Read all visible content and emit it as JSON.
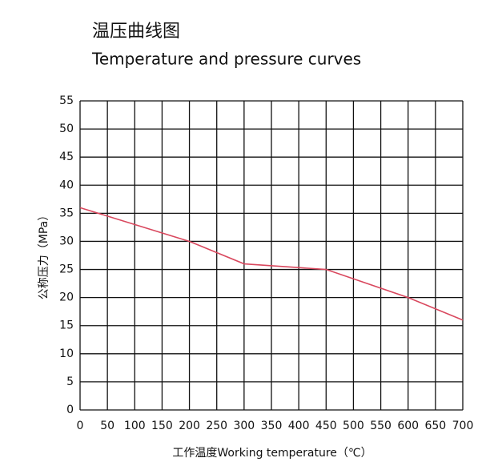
{
  "chart_data": {
    "type": "line",
    "title": "温压曲线图",
    "subtitle": "Temperature and pressure curves",
    "x_label": "工作温度Working temperature（℃）",
    "y_label": "公称压力（MPa）",
    "x": [
      0,
      200,
      300,
      450,
      600,
      700
    ],
    "series": [
      {
        "color": "#d9485e",
        "values": [
          36,
          30,
          26,
          25,
          20,
          16
        ]
      }
    ],
    "xlim": [
      0,
      700
    ],
    "xticks": [
      0,
      50,
      100,
      150,
      200,
      250,
      300,
      350,
      400,
      450,
      500,
      550,
      600,
      650,
      700
    ],
    "ylim": [
      0,
      55
    ],
    "yticks": [
      0,
      5,
      10,
      15,
      20,
      25,
      30,
      35,
      40,
      45,
      50,
      55
    ],
    "grid": true
  }
}
